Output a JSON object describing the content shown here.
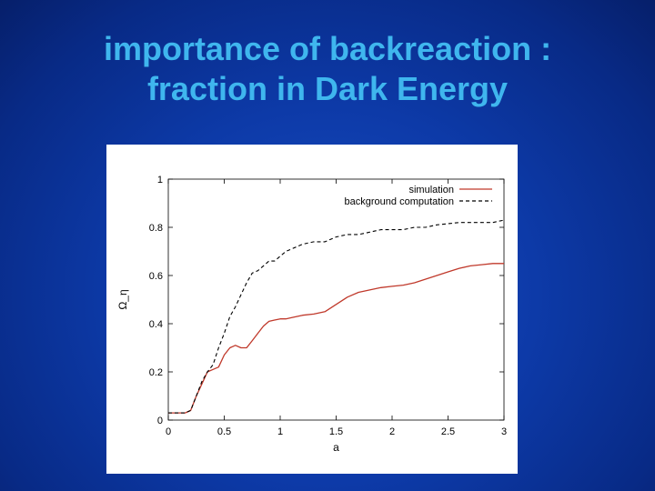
{
  "slide": {
    "title_line1": "importance of backreaction :",
    "title_line2": "fraction in Dark Energy"
  },
  "colors": {
    "background": "#0d3aa8",
    "title": "#3fb6ee",
    "simulation": "#c0392b",
    "background_computation": "#000000"
  },
  "chart_data": {
    "type": "line",
    "xlabel": "a",
    "ylabel": "Ω_η",
    "xlim": [
      0,
      3
    ],
    "ylim": [
      0,
      1
    ],
    "xticks": [
      "0",
      "0.5",
      "1",
      "1.5",
      "2",
      "2.5",
      "3"
    ],
    "yticks": [
      "0",
      "0.2",
      "0.4",
      "0.6",
      "0.8",
      "1"
    ],
    "legend_position": "top-right",
    "grid": false,
    "series": [
      {
        "name": "simulation",
        "style": "solid",
        "color": "#c0392b",
        "x": [
          0.0,
          0.15,
          0.2,
          0.25,
          0.3,
          0.35,
          0.4,
          0.45,
          0.5,
          0.55,
          0.6,
          0.65,
          0.7,
          0.75,
          0.8,
          0.85,
          0.9,
          0.95,
          1.0,
          1.05,
          1.1,
          1.2,
          1.3,
          1.4,
          1.5,
          1.6,
          1.7,
          1.8,
          1.9,
          2.0,
          2.1,
          2.2,
          2.3,
          2.4,
          2.5,
          2.6,
          2.7,
          2.8,
          2.9,
          3.0
        ],
        "y": [
          0.03,
          0.03,
          0.04,
          0.1,
          0.15,
          0.2,
          0.21,
          0.22,
          0.27,
          0.3,
          0.31,
          0.3,
          0.3,
          0.33,
          0.36,
          0.39,
          0.41,
          0.415,
          0.42,
          0.42,
          0.425,
          0.435,
          0.44,
          0.45,
          0.48,
          0.51,
          0.53,
          0.54,
          0.55,
          0.555,
          0.56,
          0.57,
          0.585,
          0.6,
          0.615,
          0.63,
          0.64,
          0.645,
          0.65,
          0.65
        ]
      },
      {
        "name": "background computation",
        "style": "dashed",
        "color": "#000000",
        "x": [
          0.0,
          0.15,
          0.2,
          0.25,
          0.3,
          0.35,
          0.4,
          0.45,
          0.5,
          0.55,
          0.6,
          0.65,
          0.7,
          0.75,
          0.8,
          0.85,
          0.9,
          0.95,
          1.0,
          1.05,
          1.1,
          1.2,
          1.3,
          1.4,
          1.5,
          1.6,
          1.7,
          1.8,
          1.9,
          2.0,
          2.1,
          2.2,
          2.3,
          2.4,
          2.5,
          2.6,
          2.7,
          2.8,
          2.9,
          3.0
        ],
        "y": [
          0.03,
          0.03,
          0.04,
          0.1,
          0.16,
          0.2,
          0.23,
          0.3,
          0.36,
          0.43,
          0.47,
          0.52,
          0.57,
          0.61,
          0.62,
          0.64,
          0.66,
          0.66,
          0.68,
          0.7,
          0.71,
          0.73,
          0.74,
          0.74,
          0.76,
          0.77,
          0.77,
          0.78,
          0.79,
          0.79,
          0.79,
          0.8,
          0.8,
          0.81,
          0.815,
          0.82,
          0.82,
          0.82,
          0.82,
          0.83
        ]
      }
    ]
  }
}
